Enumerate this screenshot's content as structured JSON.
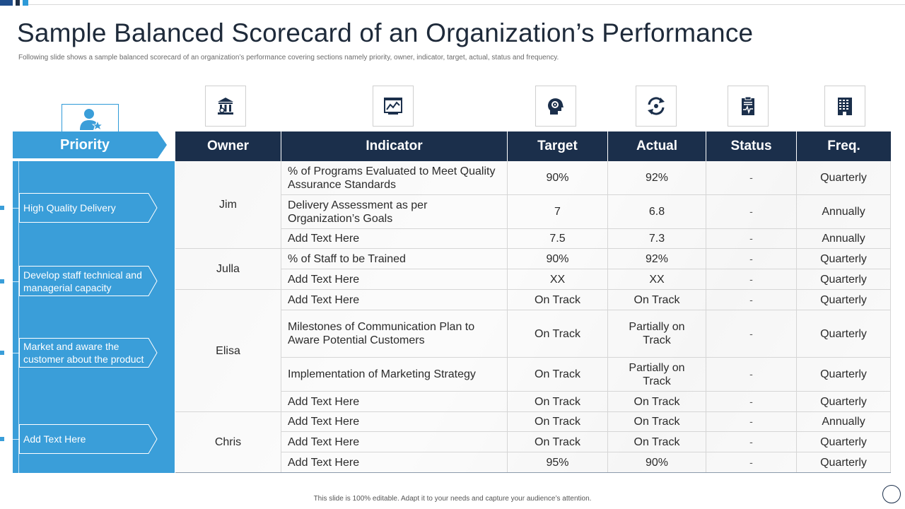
{
  "title": "Sample Balanced Scorecard of an Organization’s Performance",
  "subtitle": "Following slide shows a sample balanced scorecard of an organization’s performance covering sections namely priority, owner, indicator, target, actual, status and frequency.",
  "footer": "This slide is 100% editable. Adapt it to your needs and capture your audience’s attention.",
  "icons": {
    "priority": "user-star-icon",
    "owner": "bank-building-icon",
    "indicator": "analytics-chart-icon",
    "target": "head-gear-target-icon",
    "actual": "refresh-cycle-icon",
    "status": "clipboard-pulse-icon",
    "freq": "office-building-icon"
  },
  "colors": {
    "accent": "#3a9ed9",
    "header_dark": "#1b2f4b"
  },
  "priority": {
    "header": "Priority",
    "items": [
      "High Quality Delivery",
      "Develop staff technical and managerial capacity",
      "Market and aware the customer about the product",
      "Add Text Here"
    ]
  },
  "table": {
    "headers": {
      "owner": "Owner",
      "indicator": "Indicator",
      "target": "Target",
      "actual": "Actual",
      "status": "Status",
      "freq": "Freq."
    },
    "owners": [
      "Jim",
      "Julla",
      "Elisa",
      "Chris"
    ],
    "rows": [
      {
        "indicator": "% of Programs Evaluated to Meet Quality Assurance Standards",
        "target": "90%",
        "actual": "92%",
        "status": "-",
        "freq": "Quarterly"
      },
      {
        "indicator": "Delivery Assessment as per Organization’s Goals",
        "target": "7",
        "actual": "6.8",
        "status": "-",
        "freq": "Annually"
      },
      {
        "indicator": "Add Text Here",
        "target": "7.5",
        "actual": "7.3",
        "status": "-",
        "freq": "Annually"
      },
      {
        "indicator": "% of Staff to be Trained",
        "target": "90%",
        "actual": "92%",
        "status": "-",
        "freq": "Quarterly"
      },
      {
        "indicator": "Add Text Here",
        "target": "XX",
        "actual": "XX",
        "status": "-",
        "freq": "Quarterly"
      },
      {
        "indicator": "Add Text Here",
        "target": "On Track",
        "actual": "On Track",
        "status": "-",
        "freq": "Quarterly"
      },
      {
        "indicator": "Milestones of Communication Plan to Aware Potential Customers",
        "target": "On Track",
        "actual": "Partially on Track",
        "status": "-",
        "freq": "Quarterly"
      },
      {
        "indicator": "Implementation of Marketing Strategy",
        "target": "On Track",
        "actual": "Partially on Track",
        "status": "-",
        "freq": "Quarterly"
      },
      {
        "indicator": "Add Text Here",
        "target": "On Track",
        "actual": "On Track",
        "status": "-",
        "freq": "Quarterly"
      },
      {
        "indicator": "Add Text Here",
        "target": "On Track",
        "actual": "On Track",
        "status": "-",
        "freq": "Annually"
      },
      {
        "indicator": "Add Text Here",
        "target": "On Track",
        "actual": "On Track",
        "status": "-",
        "freq": "Quarterly"
      },
      {
        "indicator": "Add Text Here",
        "target": "95%",
        "actual": "90%",
        "status": "-",
        "freq": "Quarterly"
      }
    ]
  }
}
